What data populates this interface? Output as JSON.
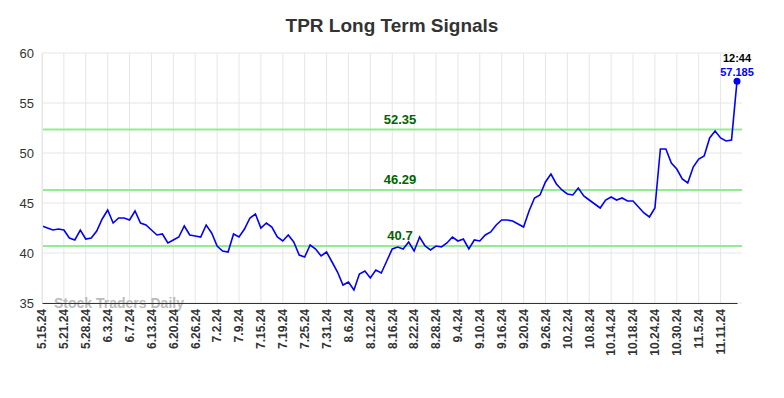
{
  "chart_data": {
    "type": "line",
    "title": "TPR Long Term Signals",
    "watermark": "Stock Traders Daily",
    "annotations": [
      "12:44"
    ],
    "end_label": "57.185",
    "color": "#0000ff",
    "grid": true,
    "ylim": [
      35,
      60
    ],
    "yticks": [
      35,
      40,
      45,
      50,
      55,
      60
    ],
    "horizontal_lines": [
      {
        "value": 52.35,
        "label": "52.35",
        "color": "#90ee90"
      },
      {
        "value": 46.29,
        "label": "46.29",
        "color": "#90ee90"
      },
      {
        "value": 40.7,
        "label": "40.7",
        "color": "#90ee90"
      }
    ],
    "categories": [
      "5.15.24",
      null,
      null,
      null,
      "5.21.24",
      null,
      null,
      null,
      "5.28.24",
      null,
      null,
      null,
      "6.3.24",
      null,
      null,
      null,
      "6.7.24",
      null,
      null,
      null,
      "6.13.24",
      null,
      null,
      null,
      "6.20.24",
      null,
      null,
      null,
      "6.26.24",
      null,
      null,
      null,
      "7.2.24",
      null,
      null,
      null,
      "7.9.24",
      null,
      null,
      null,
      "7.15.24",
      null,
      null,
      null,
      "7.19.24",
      null,
      null,
      null,
      "7.25.24",
      null,
      null,
      null,
      "7.31.24",
      null,
      null,
      null,
      "8.6.24",
      null,
      null,
      null,
      "8.12.24",
      null,
      null,
      null,
      "8.16.24",
      null,
      null,
      null,
      "8.22.24",
      null,
      null,
      null,
      "8.28.24",
      null,
      null,
      null,
      "9.4.24",
      null,
      null,
      null,
      "9.10.24",
      null,
      null,
      null,
      "9.16.24",
      null,
      null,
      null,
      "9.20.24",
      null,
      null,
      null,
      "9.26.24",
      null,
      null,
      null,
      "10.2.24",
      null,
      null,
      null,
      "10.8.24",
      null,
      null,
      null,
      "10.14.24",
      null,
      null,
      null,
      "10.18.24",
      null,
      null,
      null,
      "10.24.24",
      null,
      null,
      null,
      "10.30.24",
      null,
      null,
      null,
      "11.5.24",
      null,
      null,
      null,
      "11.11.24",
      null,
      null,
      null
    ],
    "values": [
      42.7,
      42.5,
      42.3,
      42.4,
      42.3,
      41.5,
      41.3,
      42.3,
      41.4,
      41.5,
      42.2,
      43.4,
      44.3,
      43.0,
      43.5,
      43.5,
      43.3,
      44.2,
      43.0,
      42.8,
      42.3,
      41.8,
      41.9,
      41.0,
      41.3,
      41.6,
      42.7,
      41.8,
      41.7,
      41.6,
      42.8,
      42.0,
      40.7,
      40.2,
      40.1,
      41.9,
      41.6,
      42.4,
      43.5,
      43.9,
      42.5,
      43.0,
      42.6,
      41.6,
      41.2,
      41.8,
      41.1,
      39.8,
      39.6,
      40.8,
      40.4,
      39.7,
      40.1,
      39.1,
      38.1,
      36.8,
      37.1,
      36.3,
      37.9,
      38.2,
      37.5,
      38.3,
      38.0,
      39.2,
      40.4,
      40.6,
      40.4,
      41.1,
      40.2,
      41.6,
      40.7,
      40.3,
      40.7,
      40.6,
      41.0,
      41.6,
      41.2,
      41.4,
      40.4,
      41.3,
      41.2,
      41.8,
      42.1,
      42.8,
      43.3,
      43.3,
      43.2,
      42.9,
      42.6,
      44.2,
      45.5,
      45.8,
      47.1,
      47.9,
      46.9,
      46.3,
      45.9,
      45.8,
      46.5,
      45.7,
      45.3,
      44.9,
      44.5,
      45.3,
      45.6,
      45.3,
      45.5,
      45.2,
      45.2,
      44.6,
      44.0,
      43.6,
      44.5,
      50.4,
      50.4,
      49.0,
      48.4,
      47.4,
      47.0,
      48.6,
      49.4,
      49.7,
      51.5,
      52.2,
      51.5,
      51.2,
      51.3,
      57.185
    ]
  }
}
